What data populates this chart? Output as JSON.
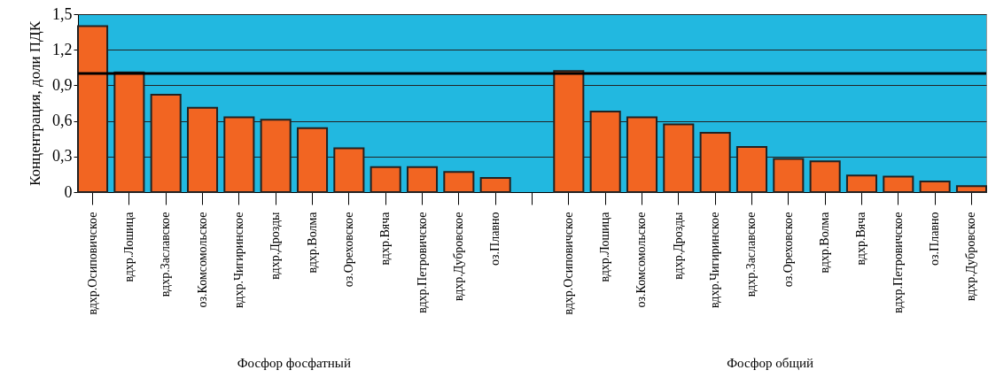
{
  "chart_data": {
    "type": "bar",
    "ylabel": "Концентрация, доли ПДК",
    "categories": [
      "вдхр.Осиповичское",
      "вдхр.Лошица",
      "вдхр.Заславское",
      "оз.Комсомольское",
      "вдхр.Чигиринское",
      "вдхр.Дрозды",
      "вдхр.Волма",
      "оз.Ореховское",
      "вдхр.Вяча",
      "вдхр.Петровичское",
      "вдхр.Дубровское",
      "оз.Плавно",
      null,
      "вдхр.Осиповичское",
      "вдхр.Лошица",
      "оз.Комсомольское",
      "вдхр.Дрозды",
      "вдхр.Чигиринское",
      "вдхр.Заславское",
      "оз.Ореховское",
      "вдхр.Волма",
      "вдхр.Вяча",
      "вдхр.Петровичское",
      "оз.Плавно",
      "вдхр.Дубровское"
    ],
    "values": [
      1.4,
      1.01,
      0.82,
      0.71,
      0.63,
      0.61,
      0.54,
      0.37,
      0.21,
      0.21,
      0.17,
      0.12,
      null,
      1.02,
      0.68,
      0.63,
      0.57,
      0.5,
      0.38,
      0.28,
      0.26,
      0.14,
      0.13,
      0.09,
      0.05
    ],
    "color": "#f26522",
    "ylim": [
      0,
      1.5
    ],
    "yticks": [
      0,
      {
        "value": 0.3,
        "label": "0,3"
      },
      {
        "value": 0.6,
        "label": "0,6"
      },
      {
        "value": 0.9,
        "label": "0,9"
      },
      {
        "value": 1.2,
        "label": "1,2"
      },
      {
        "value": 1.5,
        "label": "1,5"
      }
    ],
    "grid": true,
    "ref_lines": [
      {
        "axis": "y",
        "value": 1.0,
        "color": "#000000"
      }
    ],
    "annotations": [
      "Фосфор фосфатный",
      "Фосфор общий"
    ]
  }
}
